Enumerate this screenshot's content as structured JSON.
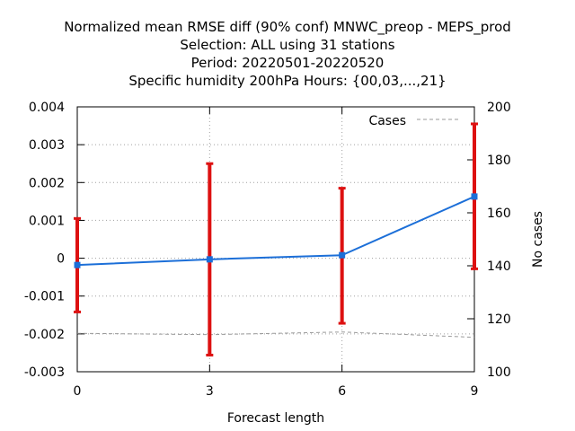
{
  "chart_data": {
    "type": "line",
    "title_lines": [
      "Normalized mean RMSE diff (90% conf) MNWC_preop - MEPS_prod",
      "Selection: ALL using    31 stations",
      "Period: 20220501-20220520",
      "Specific humidity 200hPa   Hours: {00,03,...,21}"
    ],
    "xlabel": "Forecast length",
    "ylabel": "",
    "y2label": "No cases",
    "x": [
      0,
      3,
      6,
      9
    ],
    "xlim": [
      0,
      9
    ],
    "ylim": [
      -0.003,
      0.004
    ],
    "y2lim": [
      100,
      200
    ],
    "x_ticks": [
      "0",
      "3",
      "6",
      "9"
    ],
    "y_ticks": [
      "-0.003",
      "-0.002",
      "-0.001",
      "0",
      "0.001",
      "0.002",
      "0.003",
      "0.004"
    ],
    "y2_ticks": [
      "100",
      "120",
      "140",
      "160",
      "180",
      "200"
    ],
    "grid": true,
    "legend_position": "top-right",
    "series": [
      {
        "values": [
          -0.00018,
          -3e-05,
          8e-05,
          0.00163
        ],
        "error_low": [
          -0.00142,
          -0.00256,
          -0.00172,
          -0.00028
        ],
        "error_high": [
          0.00105,
          0.0025,
          0.00185,
          0.00355
        ],
        "color": "#1c6fd8",
        "error_color": "#dd1111",
        "axis": "left"
      },
      {
        "name": "Cases",
        "values": [
          114.5,
          114,
          115,
          113
        ],
        "color": "#999999",
        "dash": true,
        "axis": "right"
      }
    ]
  }
}
